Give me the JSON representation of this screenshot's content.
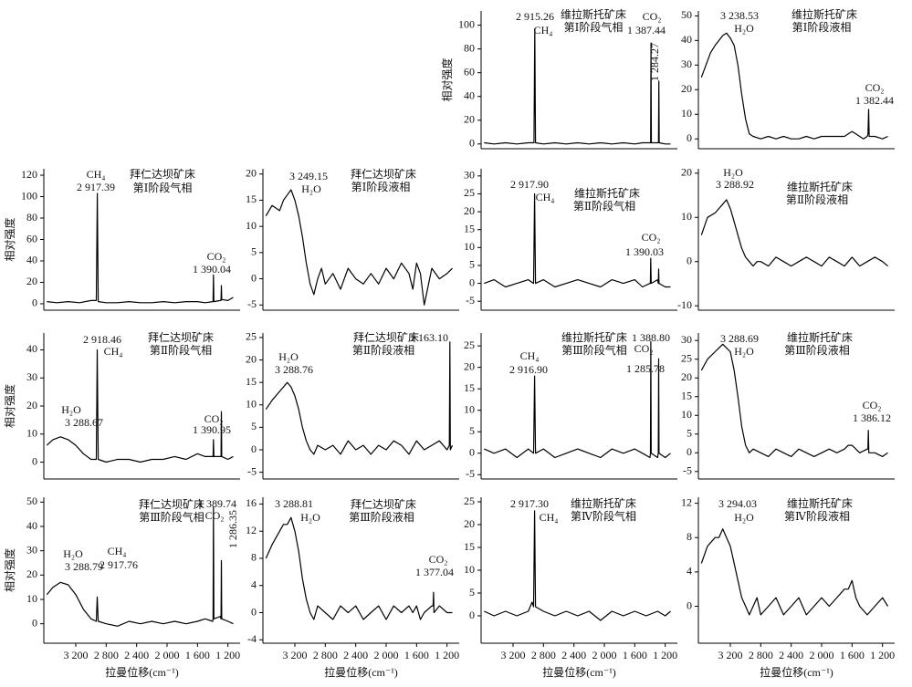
{
  "chart_data": [
    {
      "type": "line",
      "title": "维拉斯托矿床",
      "subtitle": "第Ⅰ阶段气相",
      "ylabel": "相对强度",
      "color": "#000000",
      "annotations": [
        "2 915.26",
        "CH₄",
        "CO₂",
        "1 387.44",
        "1 284.27"
      ],
      "x": [
        3580,
        3450,
        3300,
        3150,
        3000,
        2925,
        2915,
        2905,
        2800,
        2650,
        2500,
        2350,
        2200,
        2050,
        1900,
        1750,
        1600,
        1500,
        1400,
        1392,
        1387,
        1382,
        1300,
        1289,
        1284,
        1279,
        1200,
        1130
      ],
      "values": [
        1,
        0,
        1,
        0,
        1,
        1,
        97,
        1,
        0,
        1,
        0,
        1,
        0,
        1,
        0,
        1,
        0,
        1,
        1,
        1,
        85,
        1,
        1,
        1,
        53,
        1,
        0,
        0
      ],
      "xlim": [
        3620,
        1040
      ],
      "ylim": [
        -4,
        112
      ],
      "yticks": [
        0,
        20,
        40,
        60,
        80,
        100
      ]
    },
    {
      "type": "line",
      "title": "维拉斯托矿床",
      "subtitle": "第Ⅰ阶段液相",
      "color": "#000000",
      "annotations": [
        "3 238.53",
        "H₂O",
        "CO₂",
        "1 382.44"
      ],
      "x": [
        3580,
        3520,
        3460,
        3400,
        3350,
        3300,
        3250,
        3200,
        3150,
        3100,
        3050,
        3000,
        2950,
        2900,
        2800,
        2700,
        2600,
        2500,
        2400,
        2300,
        2200,
        2100,
        2000,
        1900,
        1800,
        1700,
        1650,
        1600,
        1550,
        1500,
        1450,
        1400,
        1390,
        1382,
        1375,
        1300,
        1200,
        1130
      ],
      "values": [
        25,
        30,
        35,
        38,
        40,
        42,
        43,
        41,
        38,
        30,
        18,
        8,
        2,
        1,
        0,
        1,
        0,
        1,
        0,
        0,
        1,
        0,
        1,
        1,
        1,
        1,
        2,
        3,
        2,
        1,
        0,
        1,
        2,
        12,
        1,
        1,
        0,
        1
      ],
      "xlim": [
        3620,
        1040
      ],
      "ylim": [
        -4,
        52
      ],
      "yticks": [
        0,
        10,
        20,
        30,
        40,
        50
      ]
    },
    {
      "type": "line",
      "title": "拜仁达坝矿床",
      "subtitle": "第Ⅰ阶段气相",
      "ylabel": "相对强度",
      "color": "#000000",
      "annotations": [
        "CH₄",
        "2 917.39",
        "CO₂",
        "1 390.04"
      ],
      "x": [
        3580,
        3450,
        3300,
        3150,
        3000,
        2930,
        2917,
        2905,
        2800,
        2650,
        2500,
        2350,
        2200,
        2050,
        1900,
        1750,
        1600,
        1500,
        1400,
        1395,
        1390,
        1385,
        1300,
        1291,
        1286,
        1281,
        1200,
        1130
      ],
      "values": [
        2,
        1,
        2,
        1,
        3,
        3,
        103,
        2,
        1,
        1,
        2,
        1,
        1,
        2,
        1,
        2,
        2,
        1,
        2,
        2,
        27,
        2,
        3,
        3,
        17,
        4,
        3,
        6
      ],
      "xlim": [
        3620,
        1040
      ],
      "ylim": [
        -6,
        126
      ],
      "yticks": [
        0,
        20,
        40,
        60,
        80,
        100,
        120
      ]
    },
    {
      "type": "line",
      "title": "拜仁达坝矿床",
      "subtitle": "第Ⅰ阶段液相",
      "color": "#000000",
      "annotations": [
        "3 249.15",
        "H₂O"
      ],
      "x": [
        3580,
        3500,
        3400,
        3350,
        3300,
        3250,
        3200,
        3150,
        3100,
        3050,
        3000,
        2950,
        2900,
        2850,
        2800,
        2700,
        2600,
        2500,
        2400,
        2300,
        2200,
        2100,
        2000,
        1900,
        1800,
        1700,
        1650,
        1600,
        1550,
        1500,
        1400,
        1300,
        1200,
        1130
      ],
      "values": [
        12,
        14,
        13,
        15,
        16,
        17,
        15,
        12,
        8,
        3,
        -1,
        -3,
        0,
        2,
        -1,
        1,
        -2,
        2,
        0,
        -1,
        1,
        -1,
        2,
        0,
        3,
        1,
        -2,
        3,
        1,
        -5,
        2,
        0,
        1,
        2
      ],
      "xlim": [
        3620,
        1040
      ],
      "ylim": [
        -6,
        21
      ],
      "yticks": [
        -5,
        0,
        5,
        10,
        15,
        20
      ]
    },
    {
      "type": "line",
      "title": "维拉斯托矿床",
      "subtitle": "第Ⅱ阶段气相",
      "color": "#000000",
      "annotations": [
        "2 917.90",
        "CH₄",
        "CO₂",
        "1 390.03"
      ],
      "x": [
        3580,
        3450,
        3300,
        3150,
        3000,
        2930,
        2917,
        2905,
        2800,
        2650,
        2500,
        2350,
        2200,
        2050,
        1900,
        1750,
        1600,
        1500,
        1400,
        1395,
        1390,
        1385,
        1300,
        1291,
        1286,
        1281,
        1200,
        1130
      ],
      "values": [
        0,
        1,
        -1,
        0,
        1,
        0,
        25,
        0,
        1,
        -1,
        0,
        1,
        0,
        -1,
        1,
        0,
        1,
        -1,
        0,
        0,
        7,
        0,
        1,
        0,
        4,
        0,
        -1,
        -1
      ],
      "xlim": [
        3620,
        1040
      ],
      "ylim": [
        -7.5,
        32
      ],
      "yticks": [
        -5,
        0,
        5,
        10,
        15,
        20,
        25,
        30
      ]
    },
    {
      "type": "line",
      "title": "维拉斯托矿床",
      "subtitle": "第Ⅱ阶段液相",
      "color": "#000000",
      "annotations": [
        "H₂O",
        "3 288.92"
      ],
      "x": [
        3580,
        3500,
        3400,
        3350,
        3300,
        3250,
        3200,
        3150,
        3100,
        3050,
        3000,
        2950,
        2900,
        2850,
        2800,
        2700,
        2600,
        2500,
        2400,
        2300,
        2200,
        2100,
        2000,
        1900,
        1800,
        1700,
        1650,
        1600,
        1550,
        1500,
        1400,
        1300,
        1200,
        1130
      ],
      "values": [
        6,
        10,
        11,
        12,
        13,
        14,
        12,
        9,
        6,
        3,
        1,
        0,
        -1,
        0,
        0,
        -1,
        1,
        0,
        -1,
        0,
        1,
        0,
        -1,
        1,
        0,
        -1,
        0,
        1,
        0,
        -1,
        0,
        1,
        0,
        -1
      ],
      "xlim": [
        3620,
        1040
      ],
      "ylim": [
        -11,
        21
      ],
      "yticks": [
        -10,
        0,
        10,
        20
      ]
    },
    {
      "type": "line",
      "title": "拜仁达坝矿床",
      "subtitle": "第Ⅱ阶段气相",
      "ylabel": "相对强度",
      "color": "#000000",
      "annotations": [
        "2 918.46",
        "CH₄",
        "H₂O",
        "3 288.67",
        "CO₂",
        "1 390.95"
      ],
      "x": [
        3580,
        3500,
        3400,
        3300,
        3200,
        3100,
        3000,
        2930,
        2918,
        2905,
        2800,
        2650,
        2500,
        2350,
        2200,
        2050,
        1900,
        1750,
        1600,
        1500,
        1400,
        1395,
        1390,
        1385,
        1300,
        1291,
        1286,
        1281,
        1200,
        1130
      ],
      "values": [
        6,
        8,
        9,
        8,
        6,
        3,
        1,
        1,
        40,
        1,
        0,
        1,
        1,
        0,
        1,
        1,
        2,
        1,
        3,
        2,
        2,
        2,
        8,
        2,
        2,
        2,
        18,
        2,
        1,
        2
      ],
      "xlim": [
        3620,
        1040
      ],
      "ylim": [
        -6,
        46
      ],
      "yticks": [
        0,
        10,
        20,
        30,
        40
      ]
    },
    {
      "type": "line",
      "title": "拜仁达坝矿床",
      "subtitle": "第Ⅱ阶段液相",
      "color": "#000000",
      "annotations": [
        "1 163.10",
        "H₂O",
        "3 288.76"
      ],
      "x": [
        3580,
        3500,
        3400,
        3350,
        3300,
        3250,
        3200,
        3150,
        3100,
        3050,
        3000,
        2950,
        2900,
        2800,
        2700,
        2600,
        2500,
        2400,
        2300,
        2200,
        2100,
        2000,
        1900,
        1800,
        1700,
        1600,
        1500,
        1400,
        1300,
        1200,
        1170,
        1163,
        1156,
        1130
      ],
      "values": [
        9,
        11,
        13,
        14,
        15,
        14,
        12,
        9,
        5,
        2,
        0,
        -1,
        1,
        0,
        1,
        -1,
        2,
        0,
        1,
        -1,
        1,
        0,
        2,
        1,
        -1,
        2,
        0,
        1,
        2,
        0,
        1,
        24,
        0,
        1
      ],
      "xlim": [
        3620,
        1040
      ],
      "ylim": [
        -6.5,
        26
      ],
      "yticks": [
        -5,
        0,
        5,
        10,
        15,
        20,
        25
      ]
    },
    {
      "type": "line",
      "title": "维拉斯托矿床",
      "subtitle": "第Ⅲ阶段气相",
      "color": "#000000",
      "annotations": [
        "1 388.80",
        "CO₂",
        "1 285.78",
        "CH₄",
        "2 916.90"
      ],
      "x": [
        3580,
        3450,
        3300,
        3150,
        3000,
        2930,
        2917,
        2905,
        2800,
        2650,
        2500,
        2350,
        2200,
        2050,
        1900,
        1750,
        1600,
        1500,
        1400,
        1394,
        1389,
        1384,
        1300,
        1291,
        1286,
        1281,
        1200,
        1130
      ],
      "values": [
        1,
        0,
        1,
        -1,
        1,
        0,
        18,
        0,
        1,
        -1,
        0,
        1,
        0,
        -1,
        1,
        0,
        1,
        0,
        -1,
        0,
        26,
        0,
        -1,
        0,
        22,
        0,
        -1,
        0
      ],
      "xlim": [
        3620,
        1040
      ],
      "ylim": [
        -6,
        28
      ],
      "yticks": [
        -5,
        0,
        5,
        10,
        15,
        20,
        25
      ]
    },
    {
      "type": "line",
      "title": "维拉斯托矿床",
      "subtitle": "第Ⅲ阶段液相",
      "color": "#000000",
      "annotations": [
        "3 288.69",
        "H₂O",
        "CO₂",
        "1 386.12"
      ],
      "x": [
        3580,
        3500,
        3400,
        3350,
        3300,
        3250,
        3200,
        3150,
        3100,
        3050,
        3000,
        2950,
        2900,
        2800,
        2700,
        2600,
        2500,
        2400,
        2300,
        2200,
        2100,
        2000,
        1900,
        1800,
        1700,
        1650,
        1600,
        1550,
        1500,
        1400,
        1392,
        1386,
        1380,
        1300,
        1200,
        1130
      ],
      "values": [
        22,
        25,
        27,
        28,
        29,
        28,
        27,
        22,
        15,
        7,
        2,
        0,
        1,
        0,
        -1,
        1,
        0,
        -1,
        1,
        0,
        -1,
        0,
        1,
        0,
        1,
        2,
        2,
        1,
        0,
        1,
        1,
        6,
        0,
        0,
        -1,
        0
      ],
      "xlim": [
        3620,
        1040
      ],
      "ylim": [
        -7,
        32
      ],
      "yticks": [
        -5,
        0,
        5,
        10,
        15,
        20,
        25,
        30
      ]
    },
    {
      "type": "line",
      "title": "拜仁达坝矿床",
      "subtitle": "第Ⅲ阶段气相",
      "ylabel": "相对强度",
      "xlabel": "拉曼位移(cm⁻¹)",
      "color": "#000000",
      "annotations": [
        "1 389.74",
        "CO₂",
        "1 286.35",
        "H₂O",
        "3 288.79",
        "CH₄",
        "2 917.76"
      ],
      "x": [
        3580,
        3500,
        3400,
        3300,
        3200,
        3100,
        3000,
        2930,
        2918,
        2905,
        2800,
        2650,
        2500,
        2350,
        2200,
        2050,
        1900,
        1750,
        1600,
        1500,
        1400,
        1395,
        1390,
        1385,
        1300,
        1291,
        1286,
        1281,
        1200,
        1130
      ],
      "values": [
        12,
        15,
        17,
        16,
        12,
        6,
        2,
        1,
        11,
        1,
        0,
        -1,
        1,
        0,
        1,
        0,
        1,
        0,
        1,
        2,
        1,
        2,
        48,
        2,
        3,
        2,
        26,
        2,
        1,
        0
      ],
      "xlim": [
        3620,
        1040
      ],
      "ylim": [
        -8,
        52
      ],
      "yticks": [
        0,
        10,
        20,
        30,
        40,
        50
      ],
      "xticks": [
        {
          "value": 3200,
          "label": "3 200"
        },
        {
          "value": 2800,
          "label": "2 800"
        },
        {
          "value": 2400,
          "label": "2 400"
        },
        {
          "value": 2000,
          "label": "2 000"
        },
        {
          "value": 1600,
          "label": "1 600"
        },
        {
          "value": 1200,
          "label": "1 200"
        }
      ]
    },
    {
      "type": "line",
      "title": "拜仁达坝矿床",
      "subtitle": "第Ⅲ阶段液相",
      "xlabel": "拉曼位移(cm⁻¹)",
      "color": "#000000",
      "annotations": [
        "3 288.81",
        "H₂O",
        "CO₂",
        "1 377.04"
      ],
      "x": [
        3580,
        3500,
        3400,
        3350,
        3300,
        3250,
        3200,
        3150,
        3100,
        3050,
        3000,
        2950,
        2900,
        2800,
        2700,
        2600,
        2500,
        2400,
        2300,
        2200,
        2100,
        2000,
        1900,
        1800,
        1700,
        1650,
        1600,
        1550,
        1500,
        1400,
        1383,
        1377,
        1371,
        1300,
        1200,
        1130
      ],
      "values": [
        8,
        10,
        12,
        13,
        13,
        14,
        12,
        9,
        5,
        2,
        0,
        -1,
        1,
        0,
        -1,
        1,
        0,
        1,
        -1,
        0,
        1,
        -1,
        1,
        0,
        1,
        0,
        1,
        -1,
        0,
        1,
        1,
        3,
        0,
        1,
        0,
        0
      ],
      "xlim": [
        3620,
        1040
      ],
      "ylim": [
        -4.5,
        17
      ],
      "yticks": [
        -4,
        0,
        4,
        8,
        12,
        16
      ],
      "xticks": [
        {
          "value": 3200,
          "label": "3 200"
        },
        {
          "value": 2800,
          "label": "2 800"
        },
        {
          "value": 2400,
          "label": "2 400"
        },
        {
          "value": 2000,
          "label": "2 000"
        },
        {
          "value": 1600,
          "label": "1 600"
        },
        {
          "value": 1200,
          "label": "1 200"
        }
      ]
    },
    {
      "type": "line",
      "title": "维拉斯托矿床",
      "subtitle": "第Ⅳ阶段气相",
      "xlabel": "拉曼位移(cm⁻¹)",
      "color": "#000000",
      "annotations": [
        "2 917.30",
        "CH₄"
      ],
      "x": [
        3580,
        3450,
        3300,
        3150,
        3000,
        2950,
        2930,
        2917,
        2905,
        2800,
        2650,
        2500,
        2350,
        2200,
        2050,
        1900,
        1750,
        1600,
        1450,
        1300,
        1200,
        1130
      ],
      "values": [
        1,
        0,
        1,
        0,
        1,
        3,
        2,
        23,
        2,
        1,
        0,
        1,
        0,
        1,
        -1,
        1,
        0,
        1,
        0,
        1,
        0,
        1
      ],
      "xlim": [
        3620,
        1040
      ],
      "ylim": [
        -6,
        26
      ],
      "yticks": [
        0,
        5,
        10,
        15,
        20,
        25
      ],
      "xticks": [
        {
          "value": 3200,
          "label": "3 200"
        },
        {
          "value": 2800,
          "label": "2 800"
        },
        {
          "value": 2400,
          "label": "2 400"
        },
        {
          "value": 2000,
          "label": "2 000"
        },
        {
          "value": 1600,
          "label": "1 600"
        },
        {
          "value": 1200,
          "label": "1 200"
        }
      ]
    },
    {
      "type": "line",
      "title": "维拉斯托矿床",
      "subtitle": "第Ⅳ阶段液相",
      "xlabel": "拉曼位移(cm⁻¹)",
      "color": "#000000",
      "annotations": [
        "3 294.03",
        "H₂O"
      ],
      "x": [
        3580,
        3500,
        3400,
        3350,
        3300,
        3250,
        3200,
        3150,
        3100,
        3050,
        3000,
        2950,
        2900,
        2850,
        2800,
        2700,
        2600,
        2500,
        2400,
        2300,
        2200,
        2100,
        2000,
        1900,
        1800,
        1700,
        1650,
        1600,
        1550,
        1500,
        1400,
        1300,
        1200,
        1130
      ],
      "values": [
        5,
        7,
        8,
        8,
        9,
        8,
        7,
        5,
        3,
        1,
        0,
        -1,
        0,
        1,
        -1,
        0,
        1,
        -1,
        0,
        1,
        -1,
        0,
        1,
        0,
        1,
        2,
        2,
        3,
        1,
        0,
        -1,
        0,
        1,
        0
      ],
      "xlim": [
        3620,
        1040
      ],
      "ylim": [
        -4.3,
        12.7
      ],
      "yticks": [
        0,
        4,
        8,
        12
      ],
      "xticks": [
        {
          "value": 3200,
          "label": "3 200"
        },
        {
          "value": 2800,
          "label": "2 800"
        },
        {
          "value": 2400,
          "label": "2 400"
        },
        {
          "value": 2000,
          "label": "2 000"
        },
        {
          "value": 1600,
          "label": "1 600"
        },
        {
          "value": 1200,
          "label": "1 200"
        }
      ]
    }
  ]
}
